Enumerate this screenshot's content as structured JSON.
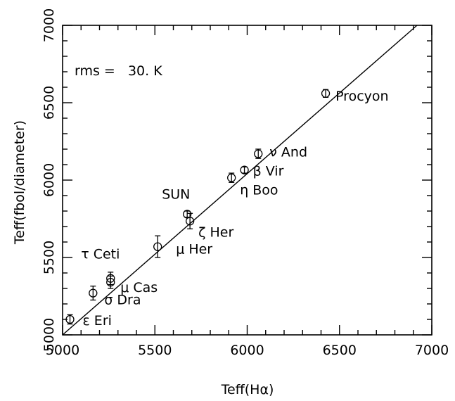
{
  "chart_data": {
    "type": "scatter",
    "xlabel": "Teff(Hα)",
    "ylabel": "Teff(fbol/diameter)",
    "xlim": [
      5000,
      7000
    ],
    "ylim": [
      5000,
      7000
    ],
    "x_ticks": [
      "5000",
      "5500",
      "6000",
      "6500",
      "7000"
    ],
    "y_ticks": [
      "5000",
      "5500",
      "6000",
      "6500",
      "7000"
    ],
    "annotation": "rms =   30. K",
    "fit_line": {
      "x": [
        5000,
        6920
      ],
      "y": [
        5000,
        7000
      ]
    },
    "points": [
      {
        "label": "ε Eri",
        "x": 5040,
        "y": 5100,
        "yerr": 30
      },
      {
        "label": "σ Dra",
        "x": 5165,
        "y": 5270,
        "yerr": 45
      },
      {
        "label": "μ Cas",
        "x": 5260,
        "y": 5340,
        "yerr": 40
      },
      {
        "label": "τ Ceti",
        "x": 5260,
        "y": 5365,
        "yerr": 40
      },
      {
        "label": "μ Her",
        "x": 5515,
        "y": 5570,
        "yerr": 70
      },
      {
        "label": "SUN",
        "x": 5675,
        "y": 5780,
        "yerr": 20
      },
      {
        "label": "ζ Her",
        "x": 5690,
        "y": 5735,
        "yerr": 50
      },
      {
        "label": "η Boo",
        "x": 5915,
        "y": 6015,
        "yerr": 30
      },
      {
        "label": "β Vir",
        "x": 5985,
        "y": 6065,
        "yerr": 20
      },
      {
        "label": "ν And",
        "x": 6060,
        "y": 6170,
        "yerr": 30
      },
      {
        "label": "Procyon",
        "x": 6425,
        "y": 6560,
        "yerr": 25
      }
    ]
  }
}
